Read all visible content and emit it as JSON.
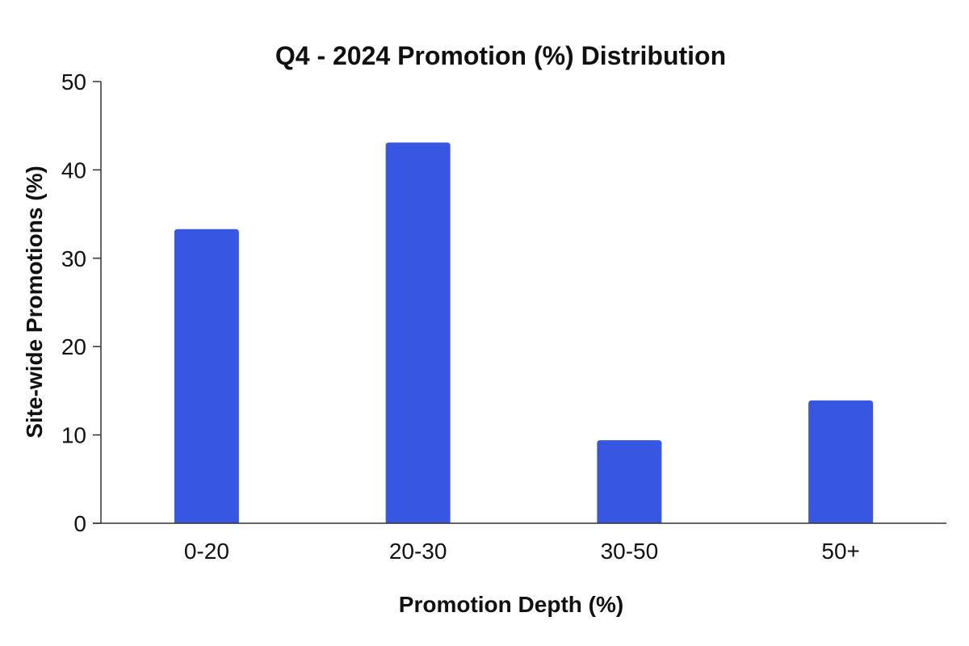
{
  "chart_data": {
    "type": "bar",
    "title": "Q4 - 2024 Promotion (%) Distribution",
    "xlabel": "Promotion Depth (%)",
    "ylabel": "Site-wide Promotions (%)",
    "categories": [
      "0-20",
      "20-30",
      "30-50",
      "50+"
    ],
    "values": [
      33.3,
      43.1,
      9.4,
      13.9
    ],
    "ylim": [
      0,
      50
    ],
    "yticks": [
      0,
      10,
      20,
      30,
      40,
      50
    ],
    "grid": false,
    "legend": "none",
    "colors": {
      "bar": "#3757e3",
      "axis": "#333333",
      "text": "#111111"
    }
  }
}
